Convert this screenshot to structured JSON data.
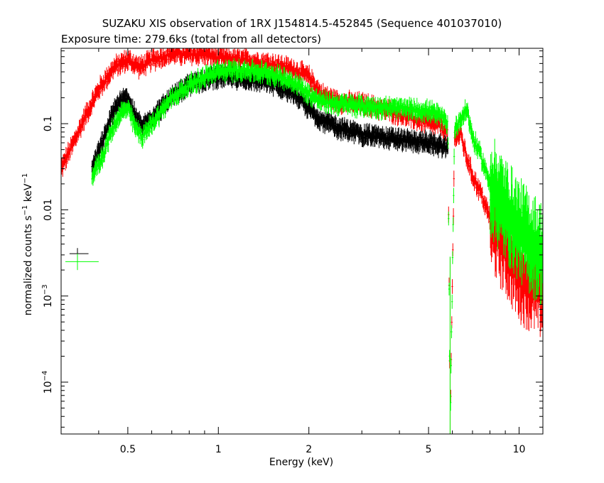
{
  "chart_data": {
    "type": "scatter",
    "title": "SUZAKU XIS observation of 1RX J154814.5-452845 (Sequence 401037010)",
    "subtitle": "Exposure time: 279.6ks (total from all detectors)",
    "xlabel": "Energy (keV)",
    "ylabel_parts": {
      "base": "normalized counts s",
      "sup1": "−1",
      "mid": " keV",
      "sup2": "−1"
    },
    "x_scale": "log",
    "y_scale": "log",
    "xlim": [
      0.3,
      12
    ],
    "ylim": [
      2.5e-05,
      0.75
    ],
    "grid": false,
    "x_ticks": [
      {
        "value": 0.5,
        "label": "0.5"
      },
      {
        "value": 1,
        "label": "1"
      },
      {
        "value": 2,
        "label": "2"
      },
      {
        "value": 5,
        "label": "5"
      },
      {
        "value": 10,
        "label": "10"
      }
    ],
    "y_ticks": [
      {
        "value": 0.1,
        "label": "0.1",
        "exp": ""
      },
      {
        "value": 0.01,
        "label": "0.01",
        "exp": ""
      },
      {
        "value": 0.001,
        "label": "10",
        "exp": "−3"
      },
      {
        "value": 0.0001,
        "label": "10",
        "exp": "−4"
      }
    ],
    "series": [
      {
        "color": "#ff0000",
        "x": [
          0.3,
          0.33,
          0.36,
          0.4,
          0.45,
          0.5,
          0.55,
          0.6,
          0.7,
          0.8,
          0.9,
          1.0,
          1.2,
          1.5,
          1.8,
          2.0,
          2.2,
          2.5,
          3.0,
          4.0,
          5.0,
          5.5,
          5.8,
          5.9,
          6.1,
          6.4,
          6.7,
          7.0,
          7.5,
          8.0,
          9.0,
          10.0,
          11.0,
          12.0
        ],
        "y": [
          0.03,
          0.06,
          0.12,
          0.25,
          0.45,
          0.55,
          0.45,
          0.55,
          0.65,
          0.63,
          0.65,
          0.58,
          0.55,
          0.5,
          0.42,
          0.35,
          0.22,
          0.18,
          0.17,
          0.13,
          0.1,
          0.095,
          0.08,
          2.5e-05,
          0.07,
          0.075,
          0.04,
          0.025,
          0.015,
          0.008,
          0.004,
          0.002,
          0.0015,
          0.0012
        ]
      },
      {
        "color": "#000000",
        "x": [
          0.38,
          0.41,
          0.44,
          0.47,
          0.5,
          0.53,
          0.56,
          0.6,
          0.7,
          0.8,
          0.9,
          1.0,
          1.2,
          1.5,
          1.8,
          2.0,
          2.2,
          2.5,
          3.0,
          4.0,
          5.0,
          5.5,
          5.8
        ],
        "y": [
          0.03,
          0.06,
          0.12,
          0.18,
          0.2,
          0.12,
          0.09,
          0.12,
          0.2,
          0.28,
          0.33,
          0.35,
          0.34,
          0.3,
          0.22,
          0.15,
          0.11,
          0.09,
          0.075,
          0.065,
          0.06,
          0.055,
          0.05
        ]
      },
      {
        "color": "#00ff00",
        "x": [
          0.38,
          0.41,
          0.44,
          0.47,
          0.5,
          0.53,
          0.56,
          0.6,
          0.7,
          0.8,
          0.9,
          1.0,
          1.2,
          1.5,
          1.8,
          2.0,
          2.2,
          2.5,
          3.0,
          4.0,
          5.0,
          5.5,
          5.8,
          5.9,
          6.1,
          6.4,
          6.7,
          7.0,
          7.5,
          8.0,
          9.0,
          10.0,
          11.0,
          12.0
        ],
        "y": [
          0.025,
          0.04,
          0.08,
          0.13,
          0.15,
          0.09,
          0.07,
          0.1,
          0.2,
          0.28,
          0.35,
          0.4,
          0.42,
          0.38,
          0.3,
          0.22,
          0.18,
          0.17,
          0.16,
          0.15,
          0.14,
          0.12,
          0.1,
          2.5e-05,
          0.09,
          0.11,
          0.15,
          0.07,
          0.04,
          0.02,
          0.01,
          0.006,
          0.004,
          0.003
        ]
      }
    ],
    "error_crosses": [
      {
        "color": "#000000",
        "x": 0.34,
        "y": 0.0031,
        "xerr": [
          0.32,
          0.37
        ],
        "yerr": [
          0.0026,
          0.0036
        ]
      },
      {
        "color": "#00ff00",
        "x": 0.34,
        "y": 0.0025,
        "xerr": [
          0.31,
          0.4
        ],
        "yerr": [
          0.002,
          0.0031
        ]
      }
    ]
  }
}
